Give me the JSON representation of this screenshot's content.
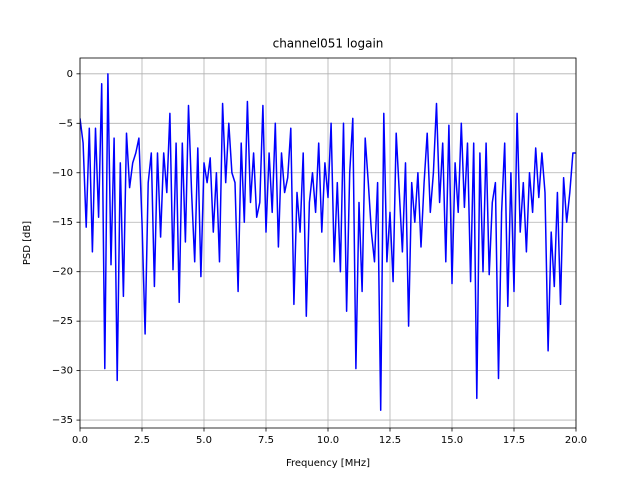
{
  "chart_data": {
    "type": "line",
    "title": "channel051 logain",
    "xlabel": "Frequency [MHz]",
    "ylabel": "PSD [dB]",
    "x": [
      0,
      0.125,
      0.25,
      0.375,
      0.5,
      0.625,
      0.75,
      0.875,
      1,
      1.125,
      1.25,
      1.375,
      1.5,
      1.625,
      1.75,
      1.875,
      2,
      2.125,
      2.25,
      2.375,
      2.5,
      2.625,
      2.75,
      2.875,
      3,
      3.125,
      3.25,
      3.375,
      3.5,
      3.625,
      3.75,
      3.875,
      4,
      4.125,
      4.25,
      4.375,
      4.5,
      4.625,
      4.75,
      4.875,
      5,
      5.125,
      5.25,
      5.375,
      5.5,
      5.625,
      5.75,
      5.875,
      6,
      6.125,
      6.25,
      6.375,
      6.5,
      6.625,
      6.75,
      6.875,
      7,
      7.125,
      7.25,
      7.375,
      7.5,
      7.625,
      7.75,
      7.875,
      8,
      8.125,
      8.25,
      8.375,
      8.5,
      8.625,
      8.75,
      8.875,
      9,
      9.125,
      9.25,
      9.375,
      9.5,
      9.625,
      9.75,
      9.875,
      10,
      10.125,
      10.25,
      10.375,
      10.5,
      10.625,
      10.75,
      10.875,
      11,
      11.125,
      11.25,
      11.375,
      11.5,
      11.625,
      11.75,
      11.875,
      12,
      12.125,
      12.25,
      12.375,
      12.5,
      12.625,
      12.75,
      12.875,
      13,
      13.125,
      13.25,
      13.375,
      13.5,
      13.625,
      13.75,
      13.875,
      14,
      14.125,
      14.25,
      14.375,
      14.5,
      14.625,
      14.75,
      14.875,
      15,
      15.125,
      15.25,
      15.375,
      15.5,
      15.625,
      15.75,
      15.875,
      16,
      16.125,
      16.25,
      16.375,
      16.5,
      16.625,
      16.75,
      16.875,
      17,
      17.125,
      17.25,
      17.375,
      17.5,
      17.625,
      17.75,
      17.875,
      18,
      18.125,
      18.25,
      18.375,
      18.5,
      18.625,
      18.75,
      18.875,
      19,
      19.125,
      19.25,
      19.375,
      19.5,
      19.625,
      19.75,
      19.875,
      20
    ],
    "series": [
      {
        "name": "channel051",
        "color": "#0000ff",
        "values": [
          -4.5,
          -7,
          -15.5,
          -5.5,
          -18,
          -5.5,
          -14.5,
          -1,
          -29.8,
          0,
          -19.3,
          -6.5,
          -31,
          -9,
          -22.5,
          -6,
          -11.5,
          -9,
          -8,
          -6.5,
          -15,
          -26.3,
          -11,
          -8,
          -21.5,
          -8,
          -16.5,
          -8,
          -12,
          -4,
          -19.8,
          -7,
          -23.1,
          -7,
          -17,
          -3.2,
          -12,
          -19,
          -7.5,
          -20.5,
          -9,
          -11,
          -8.5,
          -16,
          -10,
          -19,
          -3,
          -11,
          -5,
          -10,
          -11,
          -22,
          -7,
          -15,
          -2.8,
          -13,
          -8,
          -14.5,
          -13,
          -3.2,
          -16,
          -8,
          -14,
          -5,
          -17.5,
          -8,
          -12,
          -10.5,
          -5.5,
          -23.3,
          -12,
          -16,
          -8,
          -24.5,
          -13,
          -10,
          -14,
          -7,
          -16,
          -9,
          -12.5,
          -5,
          -19,
          -11,
          -20,
          -5,
          -24,
          -10,
          -4.5,
          -29.8,
          -13,
          -22,
          -6.5,
          -11,
          -16,
          -19,
          -11,
          -34,
          -4,
          -19,
          -14,
          -21,
          -6,
          -12,
          -18,
          -9,
          -25.5,
          -11,
          -15,
          -10,
          -17.5,
          -11,
          -6,
          -14,
          -10,
          -3,
          -13,
          -7,
          -19,
          -5.2,
          -21.2,
          -9,
          -14,
          -5,
          -13.5,
          -7,
          -21,
          -7,
          -32.8,
          -8,
          -20,
          -7,
          -20.3,
          -13,
          -11,
          -30.8,
          -14,
          -7,
          -23.5,
          -10,
          -22,
          -4,
          -16,
          -11,
          -18,
          -10,
          -14,
          -7.5,
          -12.5,
          -8,
          -12,
          -28,
          -16,
          -21.5,
          -12,
          -23.3,
          -10.5,
          -15,
          -12,
          -8,
          -8
        ]
      }
    ],
    "xlim": [
      0,
      20
    ],
    "ylim": [
      -35.8,
      1.6
    ],
    "xticks": [
      {
        "value": 0,
        "label": "0.0"
      },
      2.5,
      {
        "value": 5,
        "label": "5.0"
      },
      7.5,
      {
        "value": 10,
        "label": "10.0"
      },
      12.5,
      {
        "value": 15,
        "label": "15.0"
      },
      17.5,
      {
        "value": 20,
        "label": "20.0"
      }
    ],
    "yticks": [
      0,
      {
        "value": -5,
        "label": "−5"
      },
      {
        "value": -10,
        "label": "−10"
      },
      {
        "value": -15,
        "label": "−15"
      },
      {
        "value": -20,
        "label": "−20"
      },
      {
        "value": -25,
        "label": "−25"
      },
      {
        "value": -30,
        "label": "−30"
      },
      {
        "value": -35,
        "label": "−35"
      }
    ],
    "grid": true
  }
}
